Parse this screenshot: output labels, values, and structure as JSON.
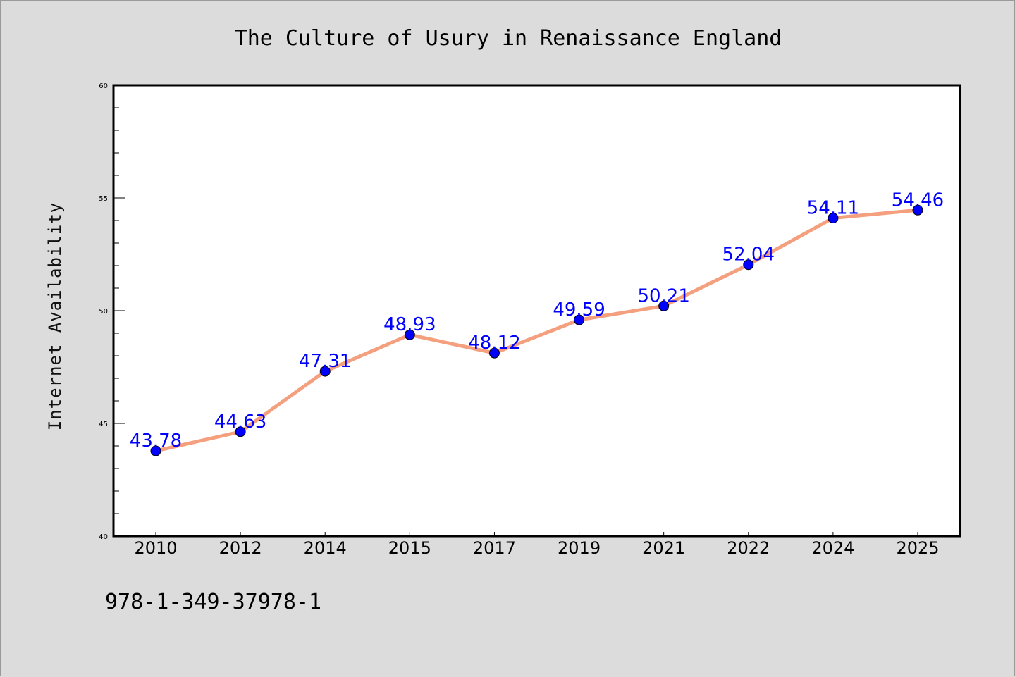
{
  "colors": {
    "background": "#dcdcdc",
    "plot_background": "#ffffff",
    "line": "#f4a07e",
    "marker": "#0000ff",
    "data_label": "#0000ff"
  },
  "isbn": "978-1-349-37978-1",
  "chart_data": {
    "type": "line",
    "title": "The Culture of Usury in Renaissance England",
    "xlabel": "",
    "ylabel": "Internet Availability",
    "categories": [
      "2010",
      "2012",
      "2014",
      "2015",
      "2017",
      "2019",
      "2021",
      "2022",
      "2024",
      "2025"
    ],
    "values": [
      43.78,
      44.63,
      47.31,
      48.93,
      48.12,
      49.59,
      50.21,
      52.04,
      54.11,
      54.46
    ],
    "data_labels": [
      "43.78",
      "44.63",
      "47.31",
      "48.93",
      "48.12",
      "49.59",
      "50.21",
      "52.04",
      "54.11",
      "54.46"
    ],
    "ylim": [
      40,
      60
    ],
    "yticks": [
      40,
      45,
      50,
      55,
      60
    ],
    "ytick_labels": [
      "40",
      "45",
      "50",
      "55",
      "60"
    ],
    "y_minor_step": 1,
    "grid": false,
    "legend": "none"
  }
}
